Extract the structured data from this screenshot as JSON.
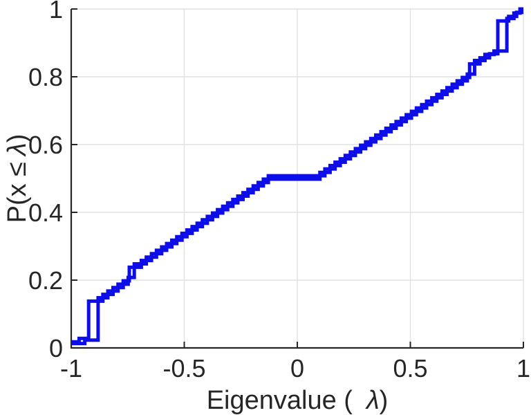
{
  "colors": {
    "line": "#0d0de8",
    "axis": "#262626",
    "grid": "#e0e0e0",
    "tick_label": "#262626",
    "background": "#ffffff"
  },
  "chart_data": {
    "type": "line",
    "subtype": "step-ecdf",
    "title": "",
    "xlabel": {
      "prefix": "Eigenvalue (",
      "lambda": "λ",
      "suffix": ")"
    },
    "ylabel": {
      "prefix": "P(x ≤",
      "lambda": "λ",
      "suffix": ")"
    },
    "axes": {
      "xlim": [
        -1,
        1
      ],
      "ylim": [
        0,
        1
      ],
      "x_ticks": [
        -1,
        -0.5,
        0,
        0.5,
        1
      ],
      "x_tick_labels": [
        "-1",
        "-0.5",
        "0",
        "0.5",
        "1"
      ],
      "y_ticks": [
        0,
        0.2,
        0.4,
        0.6,
        0.8,
        1
      ],
      "y_tick_labels": [
        "0",
        "0.2",
        "0.4",
        "0.6",
        "0.8",
        "1"
      ],
      "grid": true,
      "legend": "none"
    },
    "series": [
      {
        "name": "ecdf-curve-1",
        "points": [
          [
            -1.0,
            0.018
          ],
          [
            -0.965,
            0.028
          ],
          [
            -0.923,
            0.138
          ],
          [
            -0.86,
            0.158
          ],
          [
            -0.815,
            0.178
          ],
          [
            -0.77,
            0.198
          ],
          [
            -0.743,
            0.238
          ],
          [
            -0.69,
            0.258
          ],
          [
            -0.645,
            0.278
          ],
          [
            -0.6,
            0.298
          ],
          [
            -0.555,
            0.318
          ],
          [
            -0.51,
            0.338
          ],
          [
            -0.465,
            0.358
          ],
          [
            -0.42,
            0.378
          ],
          [
            -0.375,
            0.398
          ],
          [
            -0.33,
            0.418
          ],
          [
            -0.285,
            0.438
          ],
          [
            -0.24,
            0.458
          ],
          [
            -0.195,
            0.478
          ],
          [
            -0.15,
            0.498
          ],
          [
            0.1,
            0.518
          ],
          [
            0.145,
            0.538
          ],
          [
            0.19,
            0.558
          ],
          [
            0.235,
            0.578
          ],
          [
            0.28,
            0.598
          ],
          [
            0.325,
            0.618
          ],
          [
            0.37,
            0.638
          ],
          [
            0.415,
            0.658
          ],
          [
            0.46,
            0.678
          ],
          [
            0.505,
            0.698
          ],
          [
            0.55,
            0.718
          ],
          [
            0.595,
            0.738
          ],
          [
            0.64,
            0.758
          ],
          [
            0.685,
            0.778
          ],
          [
            0.73,
            0.798
          ],
          [
            0.762,
            0.838
          ],
          [
            0.808,
            0.856
          ],
          [
            0.85,
            0.868
          ],
          [
            0.887,
            0.965
          ],
          [
            0.935,
            0.978
          ],
          [
            0.97,
            0.99
          ]
        ]
      },
      {
        "name": "ecdf-curve-2",
        "points": [
          [
            -1.0,
            0.013
          ],
          [
            -0.94,
            0.023
          ],
          [
            -0.881,
            0.148
          ],
          [
            -0.838,
            0.168
          ],
          [
            -0.793,
            0.188
          ],
          [
            -0.748,
            0.208
          ],
          [
            -0.721,
            0.248
          ],
          [
            -0.668,
            0.268
          ],
          [
            -0.623,
            0.288
          ],
          [
            -0.578,
            0.308
          ],
          [
            -0.533,
            0.328
          ],
          [
            -0.488,
            0.348
          ],
          [
            -0.443,
            0.368
          ],
          [
            -0.398,
            0.388
          ],
          [
            -0.353,
            0.408
          ],
          [
            -0.308,
            0.428
          ],
          [
            -0.263,
            0.448
          ],
          [
            -0.218,
            0.468
          ],
          [
            -0.173,
            0.488
          ],
          [
            -0.128,
            0.508
          ],
          [
            0.122,
            0.528
          ],
          [
            0.167,
            0.548
          ],
          [
            0.212,
            0.568
          ],
          [
            0.257,
            0.588
          ],
          [
            0.302,
            0.608
          ],
          [
            0.347,
            0.628
          ],
          [
            0.392,
            0.648
          ],
          [
            0.437,
            0.668
          ],
          [
            0.482,
            0.688
          ],
          [
            0.527,
            0.708
          ],
          [
            0.572,
            0.728
          ],
          [
            0.617,
            0.748
          ],
          [
            0.662,
            0.768
          ],
          [
            0.707,
            0.788
          ],
          [
            0.752,
            0.808
          ],
          [
            0.784,
            0.848
          ],
          [
            0.83,
            0.866
          ],
          [
            0.87,
            0.876
          ],
          [
            0.927,
            0.972
          ],
          [
            0.958,
            0.988
          ],
          [
            0.985,
            1.0
          ]
        ]
      }
    ]
  }
}
